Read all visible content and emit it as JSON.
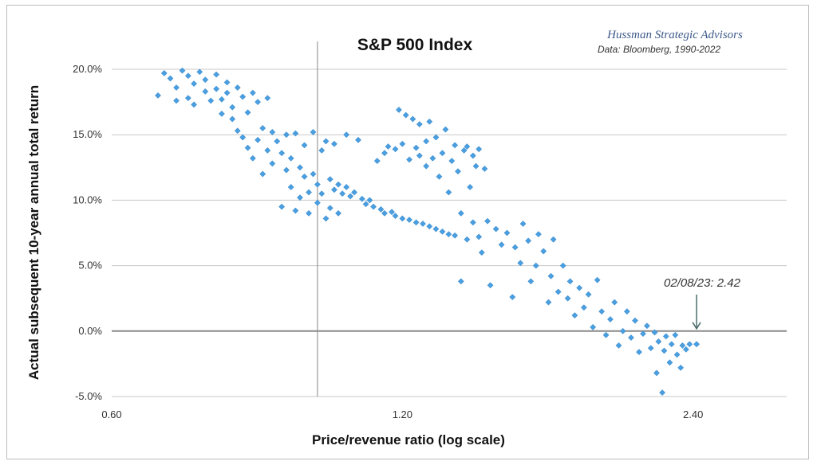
{
  "chart_data": {
    "type": "scatter",
    "title": "S&P 500 Index",
    "credit": "Hussman Strategic Advisors",
    "source": "Data: Bloomberg, 1990-2022",
    "xlabel": "Price/revenue ratio (log scale)",
    "ylabel": "Actual subsequent 10-year annual total return",
    "x_scale": "log",
    "xlim": [
      0.6,
      3.0
    ],
    "ylim": [
      -5.0,
      20.0
    ],
    "x_ticks": [
      {
        "value": 0.6,
        "label": "0.60"
      },
      {
        "value": 1.2,
        "label": "1.20"
      },
      {
        "value": 2.4,
        "label": "2.40"
      }
    ],
    "y_ticks": [
      {
        "value": 20,
        "label": "20.0%"
      },
      {
        "value": 15,
        "label": "15.0%"
      },
      {
        "value": 10,
        "label": "10.0%"
      },
      {
        "value": 5,
        "label": "5.0%"
      },
      {
        "value": 0,
        "label": "0.0%"
      },
      {
        "value": -5,
        "label": "-5.0%"
      }
    ],
    "grid": "horizontal",
    "vertical_reference_x": 0.98,
    "annotation": {
      "text": "02/08/23: 2.42",
      "x": 2.42,
      "y": 0.0
    },
    "marker_color": "#4a9fe0",
    "series": [
      {
        "points": [
          [
            0.67,
            18.0
          ],
          [
            0.68,
            19.7
          ],
          [
            0.69,
            19.3
          ],
          [
            0.7,
            18.6
          ],
          [
            0.7,
            17.6
          ],
          [
            0.71,
            19.9
          ],
          [
            0.72,
            19.5
          ],
          [
            0.72,
            17.8
          ],
          [
            0.73,
            18.9
          ],
          [
            0.73,
            17.3
          ],
          [
            0.74,
            19.8
          ],
          [
            0.75,
            19.2
          ],
          [
            0.75,
            18.3
          ],
          [
            0.76,
            17.6
          ],
          [
            0.77,
            19.6
          ],
          [
            0.77,
            18.5
          ],
          [
            0.78,
            17.7
          ],
          [
            0.78,
            16.6
          ],
          [
            0.79,
            19.0
          ],
          [
            0.79,
            18.2
          ],
          [
            0.8,
            17.1
          ],
          [
            0.8,
            16.2
          ],
          [
            0.81,
            18.6
          ],
          [
            0.81,
            15.3
          ],
          [
            0.82,
            17.9
          ],
          [
            0.82,
            14.8
          ],
          [
            0.83,
            16.7
          ],
          [
            0.83,
            14.0
          ],
          [
            0.84,
            18.2
          ],
          [
            0.84,
            13.2
          ],
          [
            0.85,
            17.5
          ],
          [
            0.85,
            14.6
          ],
          [
            0.86,
            15.5
          ],
          [
            0.86,
            12.0
          ],
          [
            0.87,
            17.8
          ],
          [
            0.87,
            13.8
          ],
          [
            0.88,
            15.2
          ],
          [
            0.88,
            12.8
          ],
          [
            0.89,
            14.5
          ],
          [
            0.9,
            13.6
          ],
          [
            0.9,
            9.5
          ],
          [
            0.91,
            15.0
          ],
          [
            0.91,
            12.3
          ],
          [
            0.92,
            13.2
          ],
          [
            0.92,
            11.0
          ],
          [
            0.93,
            15.1
          ],
          [
            0.93,
            9.2
          ],
          [
            0.94,
            12.5
          ],
          [
            0.94,
            10.2
          ],
          [
            0.95,
            14.2
          ],
          [
            0.95,
            11.8
          ],
          [
            0.96,
            10.6
          ],
          [
            0.96,
            9.0
          ],
          [
            0.97,
            15.2
          ],
          [
            0.97,
            12.0
          ],
          [
            0.98,
            11.2
          ],
          [
            0.98,
            9.8
          ],
          [
            0.99,
            13.8
          ],
          [
            0.99,
            10.5
          ],
          [
            1.0,
            14.5
          ],
          [
            1.0,
            8.6
          ],
          [
            1.01,
            11.6
          ],
          [
            1.01,
            9.4
          ],
          [
            1.02,
            14.3
          ],
          [
            1.02,
            10.8
          ],
          [
            1.03,
            11.2
          ],
          [
            1.03,
            9.0
          ],
          [
            1.04,
            10.5
          ],
          [
            1.05,
            15.0
          ],
          [
            1.05,
            11.0
          ],
          [
            1.06,
            10.3
          ],
          [
            1.07,
            10.6
          ],
          [
            1.08,
            14.6
          ],
          [
            1.09,
            10.1
          ],
          [
            1.1,
            9.7
          ],
          [
            1.11,
            10.0
          ],
          [
            1.12,
            9.5
          ],
          [
            1.13,
            13.0
          ],
          [
            1.14,
            9.3
          ],
          [
            1.15,
            9.0
          ],
          [
            1.15,
            13.6
          ],
          [
            1.16,
            14.1
          ],
          [
            1.17,
            9.1
          ],
          [
            1.18,
            8.8
          ],
          [
            1.18,
            13.9
          ],
          [
            1.19,
            16.9
          ],
          [
            1.2,
            8.6
          ],
          [
            1.2,
            14.3
          ],
          [
            1.21,
            16.5
          ],
          [
            1.22,
            8.5
          ],
          [
            1.22,
            13.1
          ],
          [
            1.23,
            16.2
          ],
          [
            1.24,
            8.3
          ],
          [
            1.24,
            14.0
          ],
          [
            1.25,
            15.8
          ],
          [
            1.25,
            13.4
          ],
          [
            1.26,
            8.2
          ],
          [
            1.27,
            14.5
          ],
          [
            1.27,
            12.6
          ],
          [
            1.28,
            16.0
          ],
          [
            1.28,
            8.0
          ],
          [
            1.29,
            13.2
          ],
          [
            1.3,
            14.8
          ],
          [
            1.3,
            7.8
          ],
          [
            1.31,
            11.8
          ],
          [
            1.32,
            13.6
          ],
          [
            1.32,
            7.6
          ],
          [
            1.33,
            15.4
          ],
          [
            1.34,
            10.6
          ],
          [
            1.34,
            7.4
          ],
          [
            1.35,
            13.0
          ],
          [
            1.36,
            14.2
          ],
          [
            1.36,
            7.3
          ],
          [
            1.37,
            12.2
          ],
          [
            1.38,
            3.8
          ],
          [
            1.38,
            9.0
          ],
          [
            1.39,
            13.8
          ],
          [
            1.4,
            7.0
          ],
          [
            1.4,
            14.1
          ],
          [
            1.41,
            11.0
          ],
          [
            1.42,
            13.4
          ],
          [
            1.42,
            8.3
          ],
          [
            1.43,
            12.6
          ],
          [
            1.44,
            7.2
          ],
          [
            1.44,
            13.9
          ],
          [
            1.45,
            6.0
          ],
          [
            1.46,
            12.4
          ],
          [
            1.47,
            8.4
          ],
          [
            1.48,
            3.5
          ],
          [
            1.5,
            7.8
          ],
          [
            1.52,
            6.6
          ],
          [
            1.54,
            7.5
          ],
          [
            1.56,
            2.6
          ],
          [
            1.57,
            6.4
          ],
          [
            1.59,
            5.2
          ],
          [
            1.6,
            8.2
          ],
          [
            1.62,
            6.9
          ],
          [
            1.63,
            3.8
          ],
          [
            1.65,
            5.0
          ],
          [
            1.66,
            7.4
          ],
          [
            1.68,
            6.1
          ],
          [
            1.7,
            2.2
          ],
          [
            1.71,
            4.2
          ],
          [
            1.72,
            7.0
          ],
          [
            1.74,
            3.0
          ],
          [
            1.76,
            5.0
          ],
          [
            1.78,
            2.5
          ],
          [
            1.79,
            3.8
          ],
          [
            1.81,
            1.2
          ],
          [
            1.83,
            3.3
          ],
          [
            1.85,
            1.8
          ],
          [
            1.87,
            2.8
          ],
          [
            1.89,
            0.3
          ],
          [
            1.91,
            3.9
          ],
          [
            1.93,
            1.5
          ],
          [
            1.95,
            -0.3
          ],
          [
            1.97,
            0.9
          ],
          [
            1.99,
            2.2
          ],
          [
            2.01,
            -1.1
          ],
          [
            2.03,
            0.0
          ],
          [
            2.05,
            1.5
          ],
          [
            2.07,
            -0.5
          ],
          [
            2.09,
            0.8
          ],
          [
            2.11,
            -1.6
          ],
          [
            2.13,
            -0.2
          ],
          [
            2.15,
            0.4
          ],
          [
            2.17,
            -1.3
          ],
          [
            2.19,
            -0.1
          ],
          [
            2.2,
            -3.2
          ],
          [
            2.21,
            -0.8
          ],
          [
            2.23,
            -4.7
          ],
          [
            2.24,
            -1.5
          ],
          [
            2.25,
            -0.4
          ],
          [
            2.27,
            -2.4
          ],
          [
            2.28,
            -1.0
          ],
          [
            2.3,
            -0.3
          ],
          [
            2.31,
            -1.8
          ],
          [
            2.33,
            -2.8
          ],
          [
            2.34,
            -1.1
          ],
          [
            2.36,
            -1.4
          ],
          [
            2.38,
            -1.0
          ],
          [
            2.42,
            -1.0
          ]
        ]
      }
    ]
  }
}
